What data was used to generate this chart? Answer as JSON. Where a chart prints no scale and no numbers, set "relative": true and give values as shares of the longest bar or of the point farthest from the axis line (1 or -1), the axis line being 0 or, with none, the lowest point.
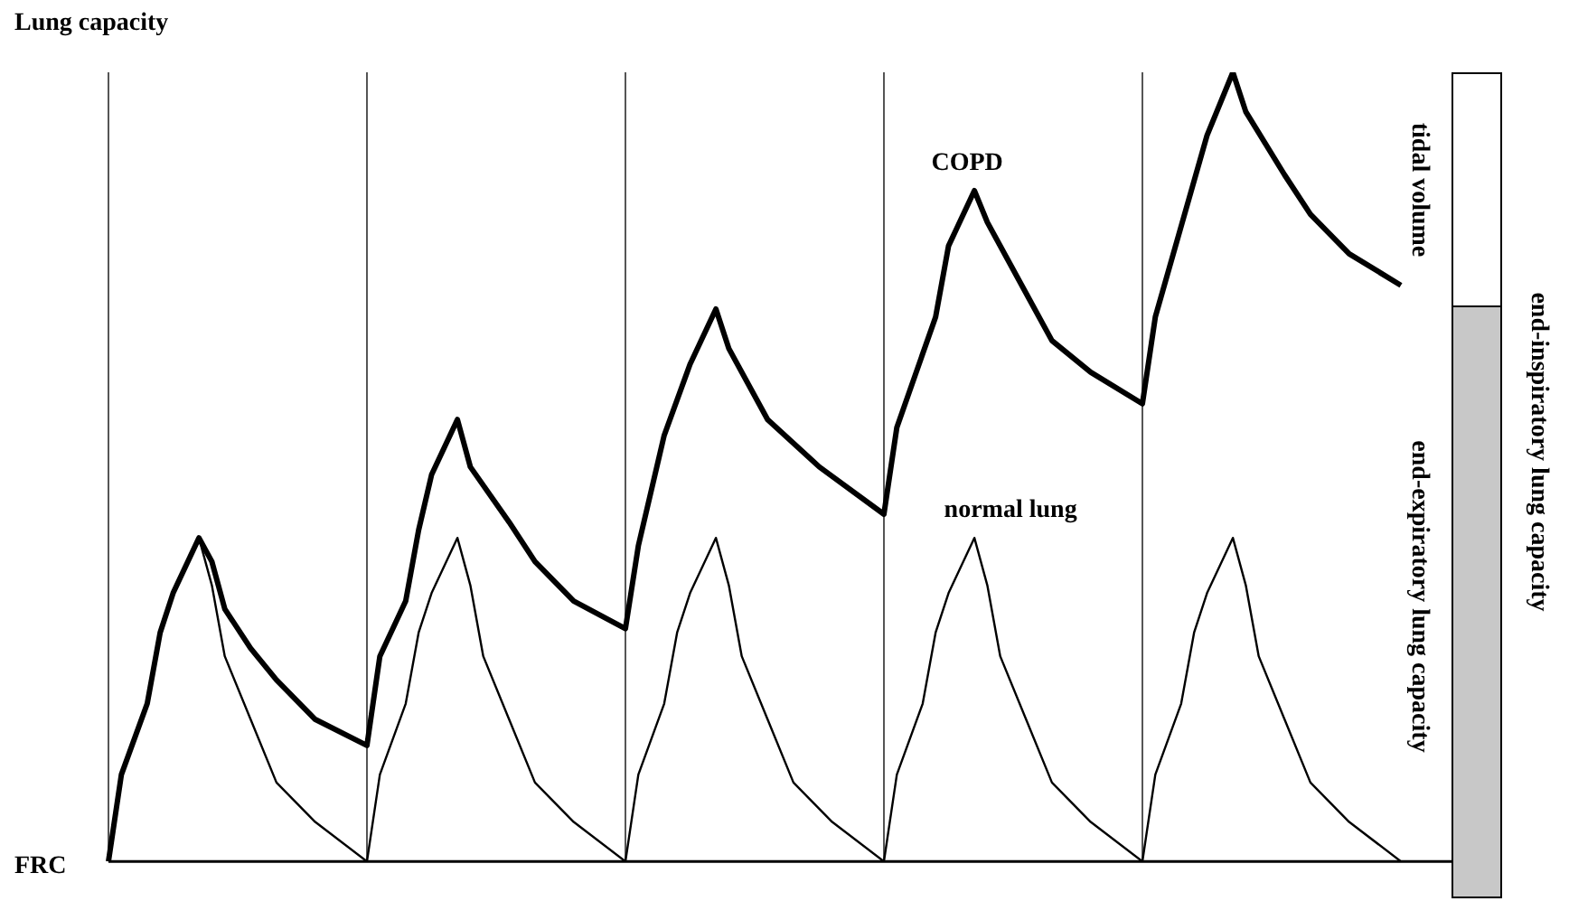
{
  "chart_data": {
    "type": "line",
    "relative": true,
    "ylabel": "Lung capacity",
    "grid": "x",
    "marker": "none",
    "legend": false,
    "categories": [
      null,
      null,
      null,
      null,
      null,
      null,
      null,
      null,
      null,
      null,
      null,
      null,
      null,
      null,
      null,
      null,
      null,
      null,
      null,
      null,
      null,
      null,
      null,
      null,
      null,
      null,
      null,
      null,
      null,
      null,
      null,
      null,
      null,
      null,
      null,
      null,
      null,
      null,
      null,
      null,
      null,
      null,
      null,
      null,
      null,
      null,
      null,
      null,
      null,
      null,
      null,
      null,
      null,
      null,
      null,
      null,
      null,
      null,
      null,
      null,
      null,
      null,
      null,
      null,
      null,
      null,
      null,
      null,
      null,
      null,
      null,
      null,
      null,
      null,
      null,
      null,
      null,
      null,
      null,
      null,
      null,
      null,
      null,
      null,
      null,
      null,
      null,
      null,
      null,
      null,
      null,
      null,
      null,
      null,
      null,
      null,
      null,
      null,
      null,
      null,
      null
    ],
    "series": [
      {
        "name": "COPD",
        "color": "#000000",
        "values": [
          0,
          0.11,
          null,
          0.2,
          0.29,
          0.34,
          null,
          0.41,
          0.38,
          0.32,
          null,
          0.27,
          null,
          0.23,
          null,
          null,
          0.18,
          null,
          null,
          null,
          0.147,
          0.26,
          null,
          0.33,
          0.42,
          0.49,
          null,
          0.56,
          0.5,
          null,
          null,
          0.43,
          null,
          0.38,
          null,
          null,
          0.33,
          null,
          null,
          null,
          0.295,
          0.4,
          null,
          0.54,
          null,
          0.63,
          null,
          0.7,
          0.65,
          null,
          null,
          0.56,
          null,
          null,
          null,
          0.5,
          null,
          null,
          null,
          null,
          0.44,
          0.55,
          null,
          null,
          0.69,
          0.78,
          null,
          0.85,
          0.81,
          null,
          null,
          0.72,
          null,
          0.66,
          null,
          null,
          0.62,
          null,
          null,
          null,
          0.58,
          0.69,
          null,
          null,
          null,
          0.92,
          null,
          1,
          0.95,
          null,
          null,
          0.87,
          null,
          0.82,
          null,
          null,
          0.77,
          null,
          null,
          null,
          0.73
        ]
      },
      {
        "name": "normal lung",
        "color": "#000000",
        "values": [
          0,
          0.11,
          null,
          0.2,
          0.29,
          0.34,
          null,
          0.41,
          0.35,
          0.26,
          null,
          0.18,
          null,
          0.1,
          null,
          null,
          0.05,
          null,
          null,
          null,
          0,
          0.11,
          null,
          0.2,
          0.29,
          0.34,
          null,
          0.41,
          0.35,
          0.26,
          null,
          0.18,
          null,
          0.1,
          null,
          null,
          0.05,
          null,
          null,
          null,
          0,
          0.11,
          null,
          0.2,
          0.29,
          0.34,
          null,
          0.41,
          0.35,
          0.26,
          null,
          0.18,
          null,
          0.1,
          null,
          null,
          0.05,
          null,
          null,
          null,
          0,
          0.11,
          null,
          0.2,
          0.29,
          0.34,
          null,
          0.41,
          0.35,
          0.26,
          null,
          0.18,
          null,
          0.1,
          null,
          null,
          0.05,
          null,
          null,
          null,
          0,
          0.11,
          null,
          0.2,
          0.29,
          0.34,
          null,
          0.41,
          0.35,
          0.26,
          null,
          0.18,
          null,
          0.1,
          null,
          null,
          0.05,
          null,
          null,
          null,
          0
        ]
      }
    ],
    "annotations": [
      "FRC",
      "tidal volume",
      "end-expiratory lung capacity",
      "end-inspiratory lung capacity"
    ]
  }
}
